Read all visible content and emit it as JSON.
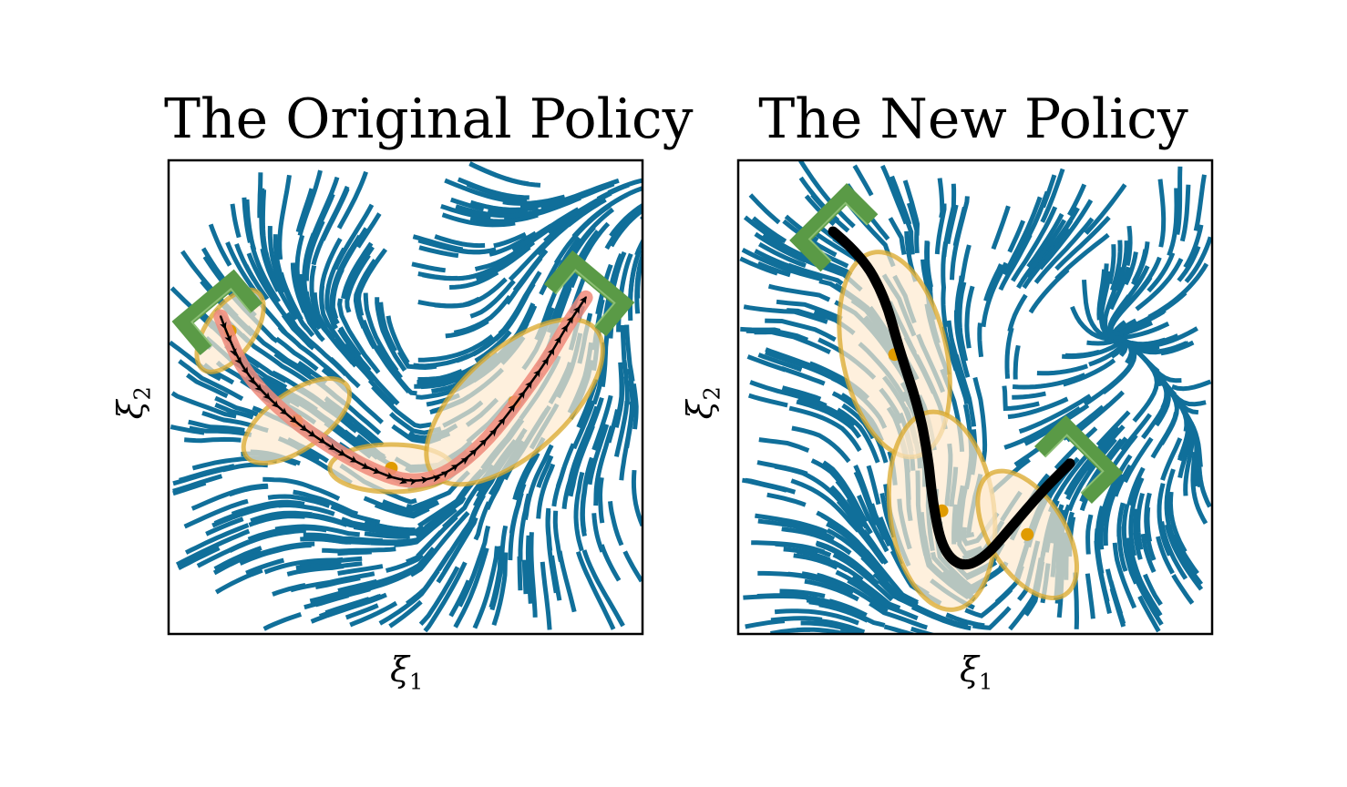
{
  "chart_data": [
    {
      "type": "streamplot",
      "title": "The Original Policy",
      "xlabel": "ξ₁",
      "ylabel": "ξ₂",
      "grid": false,
      "xlim": [
        0,
        1
      ],
      "ylim": [
        0,
        1
      ],
      "colors": {
        "streamlines": "#106f9a",
        "ellipse_fill": "#fde9cf",
        "ellipse_edge": "#d9a82a",
        "center": "#e09b00",
        "gripper": "#5a9a46",
        "trajectory": "#000000",
        "highlight": "#f08a7a"
      },
      "gaussians": [
        {
          "center": [
            0.13,
            0.64
          ],
          "rx": 0.1,
          "ry": 0.05,
          "angle_deg": -55
        },
        {
          "center": [
            0.27,
            0.45
          ],
          "rx": 0.13,
          "ry": 0.06,
          "angle_deg": -35
        },
        {
          "center": [
            0.47,
            0.35
          ],
          "rx": 0.13,
          "ry": 0.05,
          "angle_deg": 0
        },
        {
          "center": [
            0.73,
            0.49
          ],
          "rx": 0.23,
          "ry": 0.11,
          "angle_deg": -42
        }
      ],
      "trajectory": [
        [
          0.11,
          0.67
        ],
        [
          0.14,
          0.59
        ],
        [
          0.18,
          0.53
        ],
        [
          0.23,
          0.48
        ],
        [
          0.29,
          0.43
        ],
        [
          0.35,
          0.39
        ],
        [
          0.42,
          0.35
        ],
        [
          0.5,
          0.32
        ],
        [
          0.57,
          0.33
        ],
        [
          0.63,
          0.37
        ],
        [
          0.69,
          0.43
        ],
        [
          0.75,
          0.51
        ],
        [
          0.8,
          0.58
        ],
        [
          0.84,
          0.65
        ],
        [
          0.88,
          0.71
        ]
      ],
      "trajectory_arrows": true,
      "grippers": [
        {
          "position": [
            0.11,
            0.67
          ],
          "angle_deg": 40
        },
        {
          "position": [
            0.88,
            0.71
          ],
          "angle_deg": -40
        }
      ]
    },
    {
      "type": "streamplot",
      "title": "The New Policy",
      "xlabel": "ξ₁",
      "ylabel": "ξ₂",
      "grid": false,
      "xlim": [
        0,
        1
      ],
      "ylim": [
        0,
        1
      ],
      "colors": {
        "streamlines": "#106f9a",
        "ellipse_fill": "#fde9cf",
        "ellipse_edge": "#d9a82a",
        "center": "#e09b00",
        "gripper": "#5a9a46",
        "trajectory": "#000000"
      },
      "gaussians": [
        {
          "center": [
            0.33,
            0.59
          ],
          "rx": 0.22,
          "ry": 0.11,
          "angle_deg": 78
        },
        {
          "center": [
            0.43,
            0.26
          ],
          "rx": 0.21,
          "ry": 0.11,
          "angle_deg": 83
        },
        {
          "center": [
            0.61,
            0.21
          ],
          "rx": 0.15,
          "ry": 0.08,
          "angle_deg": 58
        }
      ],
      "trajectory": [
        [
          0.2,
          0.85
        ],
        [
          0.26,
          0.8
        ],
        [
          0.31,
          0.71
        ],
        [
          0.34,
          0.6
        ],
        [
          0.38,
          0.48
        ],
        [
          0.4,
          0.38
        ],
        [
          0.41,
          0.28
        ],
        [
          0.43,
          0.18
        ],
        [
          0.47,
          0.14
        ],
        [
          0.52,
          0.16
        ],
        [
          0.58,
          0.23
        ],
        [
          0.64,
          0.3
        ],
        [
          0.7,
          0.36
        ]
      ],
      "trajectory_arrows": false,
      "grippers": [
        {
          "position": [
            0.21,
            0.85
          ],
          "angle_deg": 45
        },
        {
          "position": [
            0.71,
            0.36
          ],
          "angle_deg": -45
        }
      ]
    }
  ]
}
